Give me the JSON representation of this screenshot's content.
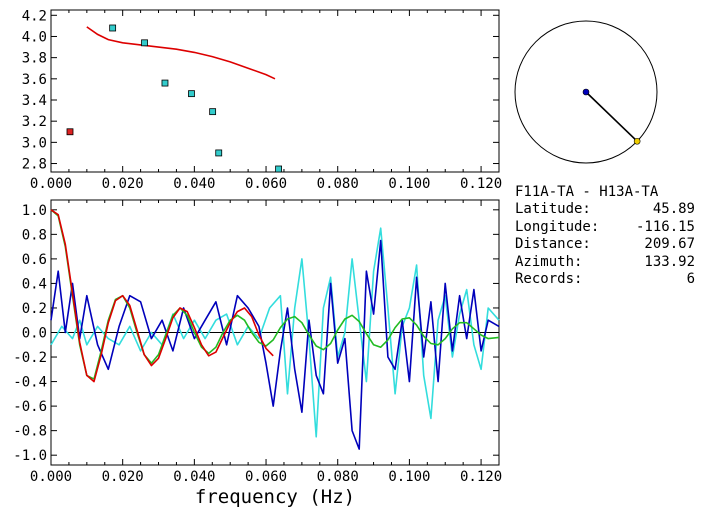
{
  "info": {
    "pair": "F11A-TA - H13A-TA",
    "rows": [
      {
        "label": "Latitude:",
        "value": "45.89"
      },
      {
        "label": "Longitude:",
        "value": "-116.15"
      },
      {
        "label": "Distance:",
        "value": "209.67"
      },
      {
        "label": "Azimuth:",
        "value": "133.92"
      },
      {
        "label": "Records:",
        "value": "6"
      }
    ]
  },
  "colors": {
    "red": "#dd0000",
    "cyan": "#33dddd",
    "blue": "#0000bb",
    "green": "#22bb22",
    "marker": "#33cccc",
    "marker_red": "#dd2222",
    "azimuth_end": "#eecc00"
  },
  "chart_data": [
    {
      "type": "scatter",
      "xlim": [
        0.0,
        0.125
      ],
      "ylim": [
        2.72,
        4.25
      ],
      "xticks": [
        "0.000",
        "0.020",
        "0.040",
        "0.060",
        "0.080",
        "0.100",
        "0.120"
      ],
      "yticks": [
        "2.8",
        "3.0",
        "3.2",
        "3.4",
        "3.6",
        "3.8",
        "4.0",
        "4.2"
      ],
      "points": [
        {
          "x": 0.0053,
          "y": 3.1,
          "color": "red"
        },
        {
          "x": 0.0172,
          "y": 4.08,
          "color": "cyan"
        },
        {
          "x": 0.0261,
          "y": 3.94,
          "color": "cyan"
        },
        {
          "x": 0.0318,
          "y": 3.56,
          "color": "cyan"
        },
        {
          "x": 0.0392,
          "y": 3.46,
          "color": "cyan"
        },
        {
          "x": 0.0451,
          "y": 3.29,
          "color": "cyan"
        },
        {
          "x": 0.0468,
          "y": 2.9,
          "color": "cyan"
        },
        {
          "x": 0.0635,
          "y": 2.73,
          "color": "cyan"
        }
      ],
      "curve": {
        "x": [
          0.01,
          0.013,
          0.016,
          0.02,
          0.025,
          0.03,
          0.035,
          0.04,
          0.045,
          0.05,
          0.055,
          0.06,
          0.0625
        ],
        "y": [
          4.09,
          4.02,
          3.97,
          3.94,
          3.92,
          3.9,
          3.88,
          3.85,
          3.81,
          3.76,
          3.7,
          3.64,
          3.6
        ]
      }
    },
    {
      "type": "line",
      "xlim": [
        0.0,
        0.125
      ],
      "ylim": [
        -1.08,
        1.08
      ],
      "xlabel": "frequency (Hz)",
      "xticks": [
        "0.000",
        "0.020",
        "0.040",
        "0.060",
        "0.080",
        "0.100",
        "0.120"
      ],
      "yticks": [
        "1.0",
        "0.8",
        "0.6",
        "0.4",
        "0.2",
        "0.0",
        "-0.2",
        "-0.4",
        "-0.6",
        "-0.8",
        "-1.0"
      ],
      "series": [
        {
          "color": "cyan",
          "x": [
            0.0,
            0.003,
            0.006,
            0.008,
            0.01,
            0.013,
            0.016,
            0.019,
            0.022,
            0.025,
            0.028,
            0.031,
            0.034,
            0.037,
            0.04,
            0.043,
            0.046,
            0.049,
            0.052,
            0.055,
            0.058,
            0.061,
            0.064,
            0.066,
            0.068,
            0.07,
            0.072,
            0.074,
            0.076,
            0.078,
            0.08,
            0.082,
            0.084,
            0.086,
            0.088,
            0.09,
            0.092,
            0.094,
            0.096,
            0.098,
            0.1,
            0.102,
            0.104,
            0.106,
            0.108,
            0.11,
            0.112,
            0.114,
            0.116,
            0.118,
            0.12,
            0.122,
            0.125
          ],
          "y": [
            -0.1,
            0.05,
            -0.05,
            0.1,
            -0.1,
            0.05,
            -0.05,
            -0.1,
            0.05,
            -0.15,
            0.0,
            -0.1,
            0.15,
            -0.05,
            0.1,
            -0.05,
            0.1,
            0.15,
            -0.1,
            0.05,
            -0.05,
            0.2,
            0.3,
            -0.5,
            0.2,
            0.6,
            -0.05,
            -0.85,
            0.2,
            0.45,
            -0.2,
            0.0,
            0.6,
            0.1,
            -0.4,
            0.5,
            0.85,
            0.2,
            -0.5,
            0.05,
            0.2,
            0.55,
            -0.35,
            -0.7,
            0.1,
            0.3,
            -0.2,
            0.15,
            0.35,
            -0.1,
            -0.3,
            0.2,
            0.1
          ]
        },
        {
          "color": "blue",
          "x": [
            0.0,
            0.002,
            0.004,
            0.006,
            0.008,
            0.01,
            0.013,
            0.016,
            0.019,
            0.022,
            0.025,
            0.028,
            0.031,
            0.034,
            0.037,
            0.04,
            0.043,
            0.046,
            0.049,
            0.052,
            0.055,
            0.058,
            0.06,
            0.062,
            0.064,
            0.066,
            0.068,
            0.07,
            0.072,
            0.074,
            0.076,
            0.078,
            0.08,
            0.082,
            0.084,
            0.086,
            0.088,
            0.09,
            0.092,
            0.094,
            0.096,
            0.098,
            0.1,
            0.102,
            0.104,
            0.106,
            0.108,
            0.11,
            0.112,
            0.114,
            0.116,
            0.118,
            0.12,
            0.122,
            0.125
          ],
          "y": [
            0.1,
            0.5,
            0.0,
            0.4,
            -0.05,
            0.3,
            -0.1,
            -0.3,
            0.05,
            0.3,
            0.25,
            -0.05,
            0.1,
            -0.15,
            0.2,
            -0.05,
            0.1,
            0.25,
            -0.1,
            0.3,
            0.2,
            0.05,
            -0.25,
            -0.6,
            -0.15,
            0.2,
            -0.3,
            -0.65,
            0.1,
            -0.35,
            -0.5,
            0.4,
            -0.25,
            -0.05,
            -0.8,
            -0.95,
            0.5,
            0.15,
            0.75,
            -0.2,
            -0.3,
            0.1,
            -0.4,
            0.45,
            -0.2,
            0.25,
            -0.4,
            0.4,
            -0.15,
            0.3,
            -0.05,
            0.35,
            -0.15,
            0.1,
            0.05
          ]
        },
        {
          "color": "green",
          "x": [
            0.0,
            0.002,
            0.004,
            0.006,
            0.008,
            0.01,
            0.012,
            0.014,
            0.016,
            0.018,
            0.02,
            0.022,
            0.024,
            0.026,
            0.028,
            0.03,
            0.032,
            0.034,
            0.036,
            0.038,
            0.04,
            0.042,
            0.044,
            0.046,
            0.048,
            0.05,
            0.052,
            0.054,
            0.056,
            0.058,
            0.06,
            0.062,
            0.064,
            0.066,
            0.068,
            0.07,
            0.072,
            0.074,
            0.076,
            0.078,
            0.08,
            0.082,
            0.084,
            0.086,
            0.088,
            0.09,
            0.092,
            0.094,
            0.096,
            0.098,
            0.1,
            0.102,
            0.104,
            0.106,
            0.108,
            0.11,
            0.112,
            0.114,
            0.116,
            0.118,
            0.12,
            0.122,
            0.125
          ],
          "y": [
            1.0,
            0.95,
            0.7,
            0.3,
            -0.1,
            -0.35,
            -0.38,
            -0.15,
            0.1,
            0.27,
            0.3,
            0.2,
            0.0,
            -0.18,
            -0.25,
            -0.18,
            -0.02,
            0.14,
            0.2,
            0.14,
            0.0,
            -0.12,
            -0.17,
            -0.12,
            0.0,
            0.1,
            0.14,
            0.1,
            0.0,
            -0.08,
            -0.11,
            -0.06,
            0.04,
            0.11,
            0.13,
            0.08,
            -0.02,
            -0.11,
            -0.14,
            -0.09,
            0.02,
            0.11,
            0.14,
            0.09,
            -0.01,
            -0.1,
            -0.12,
            -0.06,
            0.04,
            0.11,
            0.12,
            0.06,
            -0.03,
            -0.09,
            -0.1,
            -0.05,
            0.03,
            0.08,
            0.08,
            0.03,
            -0.02,
            -0.05,
            -0.04
          ]
        },
        {
          "color": "red",
          "x": [
            0.0,
            0.002,
            0.004,
            0.006,
            0.008,
            0.01,
            0.012,
            0.014,
            0.016,
            0.018,
            0.02,
            0.022,
            0.024,
            0.026,
            0.028,
            0.03,
            0.032,
            0.034,
            0.036,
            0.038,
            0.04,
            0.042,
            0.044,
            0.046,
            0.048,
            0.05,
            0.052,
            0.054,
            0.056,
            0.058,
            0.06,
            0.062
          ],
          "y": [
            1.0,
            0.96,
            0.72,
            0.32,
            -0.08,
            -0.35,
            -0.4,
            -0.18,
            0.08,
            0.26,
            0.3,
            0.22,
            0.02,
            -0.18,
            -0.27,
            -0.21,
            -0.05,
            0.12,
            0.2,
            0.17,
            0.04,
            -0.1,
            -0.19,
            -0.16,
            -0.04,
            0.08,
            0.17,
            0.2,
            0.13,
            -0.02,
            -0.13,
            -0.19
          ]
        }
      ]
    }
  ],
  "azimuth": {
    "degrees": 133.92
  }
}
